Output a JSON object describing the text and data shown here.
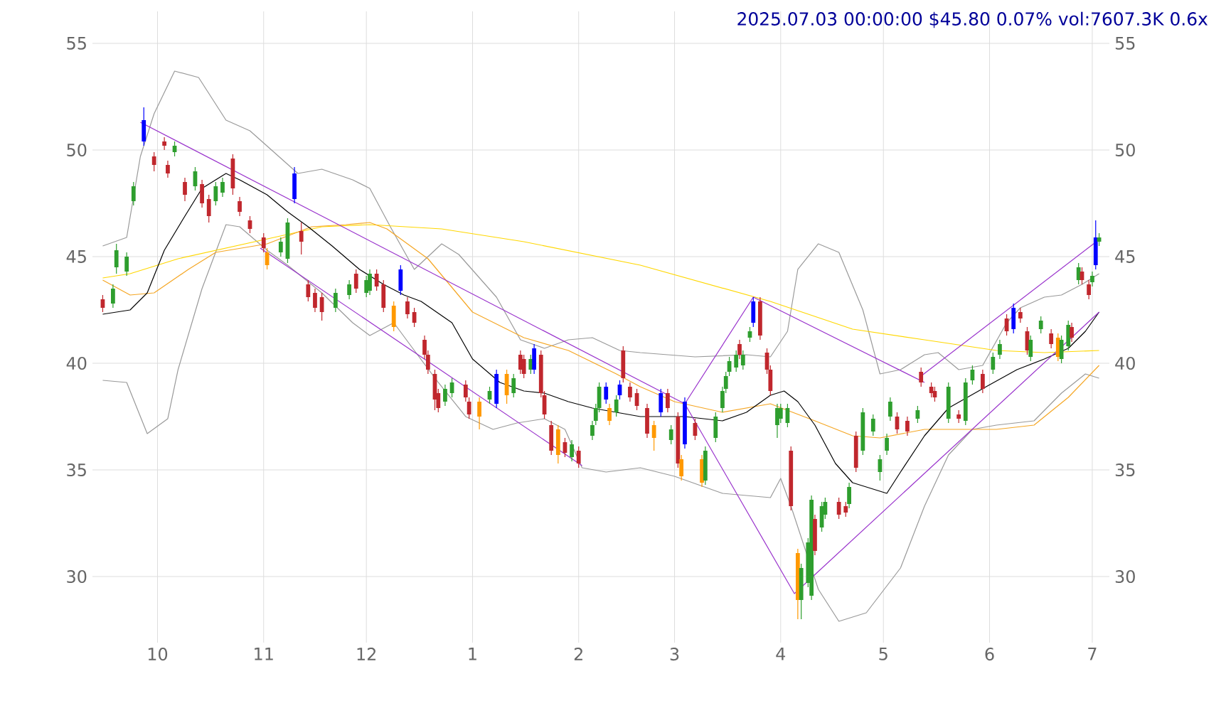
{
  "chart_data": {
    "type": "candlestick",
    "title": "2025.07.03 00:00:00 $45.80 0.07% vol:7607.3K 0.6x",
    "xlim": [
      "2024-09-12",
      "2025-07-06"
    ],
    "ylim": [
      26.9,
      56.5
    ],
    "y2lim": [
      26.9,
      56.5
    ],
    "xticks": [
      {
        "value": "2024-10-01",
        "label": "10"
      },
      {
        "value": "2024-11-01",
        "label": "11"
      },
      {
        "value": "2024-12-01",
        "label": "12"
      },
      {
        "value": "2025-01-01",
        "label": "1"
      },
      {
        "value": "2025-02-01",
        "label": "2"
      },
      {
        "value": "2025-03-01",
        "label": "3"
      },
      {
        "value": "2025-04-01",
        "label": "4"
      },
      {
        "value": "2025-05-01",
        "label": "5"
      },
      {
        "value": "2025-06-01",
        "label": "6"
      },
      {
        "value": "2025-07-01",
        "label": "7"
      }
    ],
    "yticks": [
      30,
      35,
      40,
      45,
      50,
      55
    ],
    "y2ticks": [
      30,
      35,
      40,
      45,
      50,
      55
    ],
    "grid": true,
    "x": [
      "2024-09-15",
      "2024-09-18",
      "2024-09-19",
      "2024-09-22",
      "2024-09-24",
      "2024-09-27",
      "2024-09-30",
      "2024-10-03",
      "2024-10-04",
      "2024-10-06",
      "2024-10-09",
      "2024-10-12",
      "2024-10-14",
      "2024-10-16",
      "2024-10-18",
      "2024-10-20",
      "2024-10-23",
      "2024-10-25",
      "2024-10-28",
      "2024-11-01",
      "2024-11-02",
      "2024-11-06",
      "2024-11-08",
      "2024-11-10",
      "2024-11-12",
      "2024-11-14",
      "2024-11-16",
      "2024-11-18",
      "2024-11-22",
      "2024-11-26",
      "2024-11-28",
      "2024-12-01",
      "2024-12-02",
      "2024-12-04",
      "2024-12-06",
      "2024-12-09",
      "2024-12-11",
      "2024-12-13",
      "2024-12-15",
      "2024-12-18",
      "2024-12-19",
      "2024-12-21",
      "2024-12-22",
      "2024-12-24",
      "2024-12-26",
      "2024-12-30",
      "2024-12-31",
      "2025-01-03",
      "2025-01-06",
      "2025-01-08",
      "2025-01-11",
      "2025-01-13",
      "2025-01-15",
      "2025-01-16",
      "2025-01-18",
      "2025-01-19",
      "2025-01-21",
      "2025-01-22",
      "2025-01-24",
      "2025-01-26",
      "2025-01-28",
      "2025-01-30",
      "2025-02-01",
      "2025-02-05",
      "2025-02-06",
      "2025-02-07",
      "2025-02-09",
      "2025-02-10",
      "2025-02-12",
      "2025-02-13",
      "2025-02-14",
      "2025-02-16",
      "2025-02-18",
      "2025-02-21",
      "2025-02-23",
      "2025-02-25",
      "2025-02-27",
      "2025-02-28",
      "2025-03-02",
      "2025-03-03",
      "2025-03-04",
      "2025-03-07",
      "2025-03-09",
      "2025-03-10",
      "2025-03-13",
      "2025-03-15",
      "2025-03-16",
      "2025-03-17",
      "2025-03-19",
      "2025-03-20",
      "2025-03-21",
      "2025-03-23",
      "2025-03-24",
      "2025-03-26",
      "2025-03-28",
      "2025-03-29",
      "2025-03-31",
      "2025-04-01",
      "2025-04-03",
      "2025-04-04",
      "2025-04-06",
      "2025-04-07",
      "2025-04-09",
      "2025-04-10",
      "2025-04-11",
      "2025-04-13",
      "2025-04-14",
      "2025-04-18",
      "2025-04-20",
      "2025-04-21",
      "2025-04-23",
      "2025-04-25",
      "2025-04-28",
      "2025-04-30",
      "2025-05-02",
      "2025-05-03",
      "2025-05-05",
      "2025-05-08",
      "2025-05-11",
      "2025-05-12",
      "2025-05-15",
      "2025-05-16",
      "2025-05-20",
      "2025-05-23",
      "2025-05-25",
      "2025-05-27",
      "2025-05-30",
      "2025-06-02",
      "2025-06-04",
      "2025-06-06",
      "2025-06-08",
      "2025-06-10",
      "2025-06-12",
      "2025-06-13",
      "2025-06-16",
      "2025-06-19",
      "2025-06-21",
      "2025-06-22",
      "2025-06-24",
      "2025-06-25",
      "2025-06-27",
      "2025-06-28",
      "2025-06-30",
      "2025-07-01",
      "2025-07-02",
      "2025-07-03"
    ],
    "ohlc": [
      [
        43.0,
        43.2,
        42.4,
        42.6
      ],
      [
        42.8,
        43.7,
        42.6,
        43.5
      ],
      [
        44.5,
        45.6,
        44.2,
        45.3
      ],
      [
        44.3,
        45.2,
        44.1,
        45.0
      ],
      [
        47.6,
        48.5,
        47.4,
        48.3
      ],
      [
        50.4,
        52.0,
        50.2,
        51.4
      ],
      [
        49.7,
        49.9,
        49.0,
        49.3
      ],
      [
        50.4,
        50.6,
        50.0,
        50.2
      ],
      [
        49.3,
        49.5,
        48.7,
        48.9
      ],
      [
        49.9,
        50.4,
        49.7,
        50.2
      ],
      [
        48.5,
        48.7,
        47.6,
        47.9
      ],
      [
        48.3,
        49.2,
        48.1,
        49.0
      ],
      [
        48.4,
        48.6,
        47.3,
        47.5
      ],
      [
        47.7,
        47.9,
        46.6,
        46.9
      ],
      [
        47.6,
        48.5,
        47.4,
        48.3
      ],
      [
        48.0,
        48.7,
        47.8,
        48.5
      ],
      [
        49.6,
        49.8,
        47.9,
        48.2
      ],
      [
        47.6,
        47.8,
        46.9,
        47.1
      ],
      [
        46.7,
        46.9,
        46.1,
        46.3
      ],
      [
        45.9,
        46.1,
        45.2,
        45.4
      ],
      [
        45.2,
        45.4,
        44.4,
        44.6
      ],
      [
        45.2,
        45.9,
        45.0,
        45.7
      ],
      [
        44.9,
        46.8,
        44.7,
        46.6
      ],
      [
        47.7,
        49.2,
        47.5,
        48.9
      ],
      [
        46.2,
        46.6,
        45.1,
        45.7
      ],
      [
        43.7,
        43.9,
        42.9,
        43.1
      ],
      [
        43.3,
        43.5,
        42.4,
        42.6
      ],
      [
        43.1,
        43.3,
        42.0,
        42.4
      ],
      [
        42.6,
        43.5,
        42.4,
        43.3
      ],
      [
        43.2,
        43.9,
        43.0,
        43.7
      ],
      [
        44.2,
        44.4,
        43.3,
        43.5
      ],
      [
        43.3,
        44.1,
        43.1,
        43.9
      ],
      [
        43.4,
        44.4,
        43.2,
        44.2
      ],
      [
        44.2,
        44.4,
        43.4,
        43.6
      ],
      [
        43.7,
        43.9,
        42.4,
        42.6
      ],
      [
        42.7,
        42.9,
        41.5,
        41.7
      ],
      [
        43.4,
        44.6,
        43.2,
        44.4
      ],
      [
        42.9,
        43.1,
        42.1,
        42.3
      ],
      [
        42.4,
        42.6,
        41.7,
        41.9
      ],
      [
        41.1,
        41.3,
        40.2,
        40.4
      ],
      [
        40.4,
        40.6,
        39.5,
        39.7
      ],
      [
        39.5,
        39.7,
        37.8,
        38.3
      ],
      [
        38.6,
        38.8,
        37.7,
        37.9
      ],
      [
        38.2,
        39.0,
        38.0,
        38.8
      ],
      [
        38.6,
        39.3,
        38.4,
        39.1
      ],
      [
        39.0,
        39.2,
        38.2,
        38.4
      ],
      [
        38.2,
        38.4,
        37.4,
        37.6
      ],
      [
        38.2,
        38.4,
        36.9,
        37.5
      ],
      [
        38.3,
        38.9,
        38.1,
        38.7
      ],
      [
        38.1,
        39.7,
        37.9,
        39.5
      ],
      [
        39.5,
        39.7,
        38.1,
        38.5
      ],
      [
        38.6,
        39.5,
        38.4,
        39.3
      ],
      [
        40.4,
        40.6,
        39.5,
        39.7
      ],
      [
        40.2,
        40.4,
        39.3,
        39.5
      ],
      [
        39.7,
        40.4,
        39.5,
        40.2
      ],
      [
        39.7,
        40.9,
        39.5,
        40.7
      ],
      [
        40.4,
        40.6,
        38.4,
        38.6
      ],
      [
        38.5,
        38.7,
        37.4,
        37.6
      ],
      [
        37.1,
        37.3,
        35.7,
        35.9
      ],
      [
        36.9,
        37.1,
        35.3,
        35.7
      ],
      [
        36.3,
        36.5,
        35.6,
        35.8
      ],
      [
        35.6,
        36.4,
        35.4,
        36.2
      ],
      [
        35.9,
        36.1,
        35.1,
        35.3
      ],
      [
        36.6,
        37.3,
        36.4,
        37.1
      ],
      [
        37.3,
        38.1,
        37.1,
        37.9
      ],
      [
        37.9,
        39.1,
        37.7,
        38.9
      ],
      [
        38.3,
        39.1,
        38.1,
        38.9
      ],
      [
        37.9,
        38.1,
        37.1,
        37.3
      ],
      [
        37.7,
        38.5,
        37.5,
        38.3
      ],
      [
        38.5,
        39.2,
        38.3,
        39.0
      ],
      [
        40.6,
        40.8,
        39.1,
        39.3
      ],
      [
        38.9,
        39.1,
        38.2,
        38.4
      ],
      [
        38.6,
        38.8,
        37.8,
        38.0
      ],
      [
        37.9,
        38.1,
        36.5,
        36.7
      ],
      [
        37.1,
        37.3,
        35.9,
        36.5
      ],
      [
        37.7,
        38.8,
        37.5,
        38.6
      ],
      [
        38.6,
        38.8,
        37.7,
        37.9
      ],
      [
        36.4,
        37.1,
        36.2,
        36.9
      ],
      [
        37.5,
        37.7,
        35.1,
        35.3
      ],
      [
        35.5,
        35.7,
        34.5,
        34.7
      ],
      [
        36.2,
        38.4,
        36.0,
        38.2
      ],
      [
        37.2,
        37.4,
        36.4,
        36.6
      ],
      [
        35.5,
        35.7,
        34.2,
        34.4
      ],
      [
        34.5,
        36.1,
        34.3,
        35.9
      ],
      [
        36.5,
        37.7,
        36.3,
        37.5
      ],
      [
        37.9,
        38.9,
        37.7,
        38.7
      ],
      [
        38.8,
        39.6,
        38.6,
        39.4
      ],
      [
        39.6,
        40.3,
        39.4,
        40.1
      ],
      [
        39.8,
        40.6,
        39.6,
        40.4
      ],
      [
        40.9,
        41.1,
        40.2,
        40.4
      ],
      [
        39.9,
        40.6,
        39.7,
        40.4
      ],
      [
        41.2,
        41.7,
        41.0,
        41.5
      ],
      [
        41.9,
        43.1,
        41.7,
        42.9
      ],
      [
        42.9,
        43.1,
        41.1,
        41.3
      ],
      [
        40.5,
        40.7,
        39.5,
        39.7
      ],
      [
        39.7,
        39.9,
        38.5,
        38.7
      ],
      [
        37.1,
        38.1,
        36.5,
        37.9
      ],
      [
        37.4,
        38.1,
        37.2,
        37.9
      ],
      [
        37.2,
        38.1,
        37.0,
        37.9
      ],
      [
        35.9,
        36.1,
        33.1,
        33.3
      ],
      [
        31.1,
        31.3,
        28.0,
        28.9
      ],
      [
        28.9,
        30.6,
        28.0,
        30.4
      ],
      [
        29.7,
        31.8,
        29.5,
        31.6
      ],
      [
        29.1,
        33.8,
        28.9,
        33.6
      ],
      [
        32.7,
        32.9,
        31.0,
        31.2
      ],
      [
        32.3,
        33.5,
        32.1,
        33.3
      ],
      [
        32.9,
        33.7,
        32.7,
        33.5
      ],
      [
        33.5,
        33.7,
        32.7,
        32.9
      ],
      [
        33.3,
        33.5,
        32.8,
        33.0
      ],
      [
        33.4,
        34.4,
        33.2,
        34.2
      ],
      [
        36.6,
        36.8,
        34.9,
        35.1
      ],
      [
        35.9,
        37.9,
        35.7,
        37.7
      ],
      [
        36.8,
        37.6,
        36.6,
        37.4
      ],
      [
        34.9,
        35.7,
        34.5,
        35.5
      ],
      [
        35.9,
        36.7,
        35.7,
        36.5
      ],
      [
        37.5,
        38.4,
        37.3,
        38.2
      ],
      [
        37.5,
        37.7,
        36.7,
        36.9
      ],
      [
        37.3,
        37.5,
        36.6,
        36.8
      ],
      [
        37.4,
        38.0,
        37.2,
        37.8
      ],
      [
        39.6,
        39.8,
        38.9,
        39.1
      ],
      [
        38.9,
        39.1,
        38.4,
        38.6
      ],
      [
        38.7,
        38.9,
        38.2,
        38.4
      ],
      [
        37.4,
        39.1,
        37.2,
        38.9
      ],
      [
        37.6,
        37.8,
        37.2,
        37.4
      ],
      [
        37.3,
        39.3,
        37.1,
        39.1
      ],
      [
        39.2,
        39.9,
        39.0,
        39.7
      ],
      [
        39.5,
        39.7,
        38.6,
        38.8
      ],
      [
        39.7,
        40.5,
        39.5,
        40.3
      ],
      [
        40.4,
        41.1,
        40.2,
        40.9
      ],
      [
        42.1,
        42.3,
        41.3,
        41.5
      ],
      [
        41.6,
        42.8,
        41.4,
        42.6
      ],
      [
        42.4,
        42.6,
        41.9,
        42.1
      ],
      [
        41.5,
        41.7,
        40.4,
        40.6
      ],
      [
        40.3,
        41.3,
        40.1,
        41.1
      ],
      [
        41.6,
        42.2,
        41.4,
        42.0
      ],
      [
        41.4,
        41.6,
        40.7,
        40.9
      ],
      [
        41.2,
        41.4,
        40.1,
        40.3
      ],
      [
        40.2,
        41.3,
        40.0,
        41.1
      ],
      [
        40.8,
        42.0,
        40.6,
        41.8
      ],
      [
        41.7,
        41.9,
        41.0,
        41.2
      ],
      [
        43.9,
        44.7,
        43.7,
        44.5
      ],
      [
        44.3,
        44.5,
        43.7,
        43.9
      ],
      [
        43.7,
        43.9,
        43.0,
        43.2
      ],
      [
        43.8,
        44.3,
        43.6,
        44.1
      ],
      [
        44.6,
        46.7,
        44.4,
        45.9
      ],
      [
        45.7,
        46.1,
        45.5,
        45.9
      ]
    ],
    "colors": [
      "#c0272d",
      "#2e9e2e",
      "#2e9e2e",
      "#2e9e2e",
      "#2e9e2e",
      "#0000ff",
      "#c0272d",
      "#c0272d",
      "#c0272d",
      "#2e9e2e",
      "#c0272d",
      "#2e9e2e",
      "#c0272d",
      "#c0272d",
      "#2e9e2e",
      "#2e9e2e",
      "#c0272d",
      "#c0272d",
      "#c0272d",
      "#c0272d",
      "#ff9900",
      "#2e9e2e",
      "#2e9e2e",
      "#0000ff",
      "#c0272d",
      "#c0272d",
      "#c0272d",
      "#c0272d",
      "#2e9e2e",
      "#2e9e2e",
      "#c0272d",
      "#2e9e2e",
      "#2e9e2e",
      "#c0272d",
      "#c0272d",
      "#ff9900",
      "#0000ff",
      "#c0272d",
      "#c0272d",
      "#c0272d",
      "#c0272d",
      "#c0272d",
      "#c0272d",
      "#2e9e2e",
      "#2e9e2e",
      "#c0272d",
      "#c0272d",
      "#ff9900",
      "#2e9e2e",
      "#0000ff",
      "#ff9900",
      "#2e9e2e",
      "#c0272d",
      "#c0272d",
      "#2e9e2e",
      "#0000ff",
      "#c0272d",
      "#c0272d",
      "#c0272d",
      "#ff9900",
      "#c0272d",
      "#2e9e2e",
      "#c0272d",
      "#2e9e2e",
      "#2e9e2e",
      "#2e9e2e",
      "#0000ff",
      "#ff9900",
      "#2e9e2e",
      "#0000ff",
      "#c0272d",
      "#c0272d",
      "#c0272d",
      "#c0272d",
      "#ff9900",
      "#0000ff",
      "#c0272d",
      "#2e9e2e",
      "#c0272d",
      "#ff9900",
      "#0000ff",
      "#c0272d",
      "#ff9900",
      "#2e9e2e",
      "#2e9e2e",
      "#2e9e2e",
      "#2e9e2e",
      "#2e9e2e",
      "#2e9e2e",
      "#c0272d",
      "#2e9e2e",
      "#2e9e2e",
      "#0000ff",
      "#c0272d",
      "#c0272d",
      "#c0272d",
      "#2e9e2e",
      "#2e9e2e",
      "#2e9e2e",
      "#c0272d",
      "#ff9900",
      "#2e9e2e",
      "#2e9e2e",
      "#2e9e2e",
      "#c0272d",
      "#2e9e2e",
      "#2e9e2e",
      "#c0272d",
      "#c0272d",
      "#2e9e2e",
      "#c0272d",
      "#2e9e2e",
      "#2e9e2e",
      "#2e9e2e",
      "#2e9e2e",
      "#2e9e2e",
      "#c0272d",
      "#c0272d",
      "#2e9e2e",
      "#c0272d",
      "#c0272d",
      "#c0272d",
      "#2e9e2e",
      "#c0272d",
      "#2e9e2e",
      "#2e9e2e",
      "#c0272d",
      "#2e9e2e",
      "#2e9e2e",
      "#c0272d",
      "#0000ff",
      "#c0272d",
      "#c0272d",
      "#2e9e2e",
      "#2e9e2e",
      "#c0272d",
      "#ff9900",
      "#2e9e2e",
      "#2e9e2e",
      "#c0272d",
      "#2e9e2e",
      "#c0272d",
      "#c0272d",
      "#2e9e2e",
      "#0000ff",
      "#2e9e2e"
    ],
    "series": [
      {
        "type": "line",
        "color": "#999999",
        "x": [
          "2024-09-15",
          "2024-09-22",
          "2024-09-26",
          "2024-09-30",
          "2024-10-06",
          "2024-10-13",
          "2024-10-21",
          "2024-10-28",
          "2024-11-04",
          "2024-11-11",
          "2024-11-18",
          "2024-11-27",
          "2024-12-02",
          "2024-12-08",
          "2024-12-15",
          "2024-12-23",
          "2024-12-28",
          "2025-01-08",
          "2025-01-15",
          "2025-01-22",
          "2025-01-29",
          "2025-02-05",
          "2025-02-13",
          "2025-02-19",
          "2025-03-07",
          "2025-03-22",
          "2025-03-29",
          "2025-04-03",
          "2025-04-06",
          "2025-04-12",
          "2025-04-18",
          "2025-04-25",
          "2025-04-30",
          "2025-05-06",
          "2025-05-13",
          "2025-05-17",
          "2025-05-23",
          "2025-05-30",
          "2025-06-06",
          "2025-06-10",
          "2025-06-17",
          "2025-06-22",
          "2025-06-28",
          "2025-07-03"
        ],
        "values": [
          45.5,
          45.9,
          49.7,
          51.7,
          53.7,
          53.4,
          51.4,
          50.9,
          49.9,
          48.9,
          49.1,
          48.6,
          48.2,
          46.4,
          44.4,
          45.6,
          45.1,
          43.1,
          41.1,
          40.7,
          41.1,
          41.2,
          40.6,
          40.5,
          40.3,
          40.4,
          40.3,
          41.5,
          44.4,
          45.6,
          45.2,
          42.5,
          39.5,
          39.7,
          40.4,
          40.5,
          39.7,
          39.9,
          41.9,
          42.6,
          43.1,
          43.2,
          43.7,
          44.2
        ]
      },
      {
        "type": "line",
        "color": "#999999",
        "x": [
          "2024-09-15",
          "2024-09-22",
          "2024-09-28",
          "2024-10-04",
          "2024-10-07",
          "2024-10-14",
          "2024-10-21",
          "2024-10-25",
          "2024-11-02",
          "2024-11-08",
          "2024-11-18",
          "2024-11-27",
          "2024-12-02",
          "2024-12-09",
          "2024-12-15",
          "2024-12-22",
          "2024-12-30",
          "2025-01-07",
          "2025-01-14",
          "2025-01-22",
          "2025-01-28",
          "2025-02-02",
          "2025-02-09",
          "2025-02-19",
          "2025-03-01",
          "2025-03-15",
          "2025-03-29",
          "2025-04-01",
          "2025-04-04",
          "2025-04-12",
          "2025-04-18",
          "2025-04-26",
          "2025-05-06",
          "2025-05-13",
          "2025-05-20",
          "2025-05-27",
          "2025-06-03",
          "2025-06-14",
          "2025-06-22",
          "2025-06-29",
          "2025-07-03"
        ],
        "values": [
          39.2,
          39.1,
          36.7,
          37.4,
          39.7,
          43.5,
          46.5,
          46.4,
          45.3,
          44.6,
          43.3,
          41.9,
          41.3,
          41.9,
          40.6,
          39.1,
          37.5,
          36.9,
          37.2,
          37.4,
          36.9,
          35.1,
          34.9,
          35.1,
          34.7,
          33.9,
          33.7,
          34.6,
          33.3,
          29.4,
          27.9,
          28.3,
          30.4,
          33.3,
          35.7,
          36.9,
          37.1,
          37.3,
          38.6,
          39.5,
          39.3
        ]
      },
      {
        "type": "line",
        "color": "#ffd700",
        "x": [
          "2024-09-15",
          "2024-09-23",
          "2024-10-07",
          "2024-10-21",
          "2024-11-04",
          "2024-11-18",
          "2024-12-02",
          "2024-12-23",
          "2025-01-16",
          "2025-02-19",
          "2025-03-29",
          "2025-04-22",
          "2025-05-13",
          "2025-06-03",
          "2025-06-17",
          "2025-07-03"
        ],
        "values": [
          44.0,
          44.2,
          44.9,
          45.4,
          45.9,
          46.4,
          46.5,
          46.3,
          45.7,
          44.6,
          42.9,
          41.6,
          41.1,
          40.6,
          40.5,
          40.6
        ]
      },
      {
        "type": "line",
        "color": "#f5a623",
        "x": [
          "2024-09-15",
          "2024-09-23",
          "2024-09-30",
          "2024-10-10",
          "2024-10-18",
          "2024-11-02",
          "2024-11-15",
          "2024-11-25",
          "2024-12-02",
          "2024-12-07",
          "2024-12-19",
          "2025-01-01",
          "2025-01-16",
          "2025-01-29",
          "2025-02-12",
          "2025-02-19",
          "2025-03-01",
          "2025-03-15",
          "2025-03-29",
          "2025-04-11",
          "2025-04-22",
          "2025-04-30",
          "2025-05-13",
          "2025-06-03",
          "2025-06-14",
          "2025-06-24",
          "2025-07-03"
        ],
        "values": [
          43.9,
          43.2,
          43.3,
          44.4,
          45.2,
          45.6,
          46.4,
          46.5,
          46.6,
          46.3,
          44.9,
          42.4,
          41.2,
          40.6,
          39.5,
          38.9,
          38.2,
          37.7,
          38.1,
          37.3,
          36.6,
          36.5,
          36.9,
          36.9,
          37.1,
          38.4,
          39.9
        ]
      },
      {
        "type": "line",
        "color": "#000000",
        "x": [
          "2024-09-15",
          "2024-09-23",
          "2024-09-28",
          "2024-10-03",
          "2024-10-09",
          "2024-10-14",
          "2024-10-21",
          "2024-10-25",
          "2024-11-02",
          "2024-11-08",
          "2024-11-14",
          "2024-11-21",
          "2024-11-29",
          "2024-12-06",
          "2024-12-12",
          "2024-12-17",
          "2024-12-26",
          "2025-01-01",
          "2025-01-09",
          "2025-01-16",
          "2025-01-22",
          "2025-01-29",
          "2025-02-05",
          "2025-02-12",
          "2025-02-19",
          "2025-03-04",
          "2025-03-15",
          "2025-03-22",
          "2025-03-29",
          "2025-04-02",
          "2025-04-06",
          "2025-04-11",
          "2025-04-17",
          "2025-04-22",
          "2025-05-02",
          "2025-05-06",
          "2025-05-13",
          "2025-05-20",
          "2025-05-31",
          "2025-06-09",
          "2025-06-17",
          "2025-06-24",
          "2025-06-29",
          "2025-07-03"
        ],
        "values": [
          42.3,
          42.5,
          43.3,
          45.3,
          46.9,
          48.2,
          48.9,
          48.6,
          47.9,
          47.1,
          46.4,
          45.5,
          44.4,
          43.7,
          43.2,
          42.9,
          41.9,
          40.2,
          39.1,
          38.7,
          38.6,
          38.2,
          37.9,
          37.7,
          37.5,
          37.5,
          37.3,
          37.7,
          38.5,
          38.7,
          38.2,
          37.1,
          35.3,
          34.4,
          33.9,
          34.9,
          36.6,
          37.9,
          38.9,
          39.7,
          40.2,
          40.7,
          41.5,
          42.4
        ]
      },
      {
        "type": "line",
        "color": "#9932cc",
        "x": [
          "2024-09-26",
          "2025-03-04"
        ],
        "values": [
          51.3,
          38.1
        ]
      },
      {
        "type": "line",
        "color": "#9932cc",
        "x": [
          "2025-03-04",
          "2025-03-24",
          "2025-05-13"
        ],
        "values": [
          38.1,
          43.1,
          39.1
        ]
      },
      {
        "type": "line",
        "color": "#9932cc",
        "x": [
          "2024-10-31",
          "2025-02-02"
        ],
        "values": [
          45.4,
          35.2
        ]
      },
      {
        "type": "line",
        "color": "#9932cc",
        "x": [
          "2025-03-04",
          "2025-04-05",
          "2025-07-03"
        ],
        "values": [
          38.1,
          29.2,
          42.4
        ]
      },
      {
        "type": "line",
        "color": "#9932cc",
        "x": [
          "2025-05-12",
          "2025-07-03"
        ],
        "values": [
          39.4,
          45.8
        ]
      }
    ]
  }
}
